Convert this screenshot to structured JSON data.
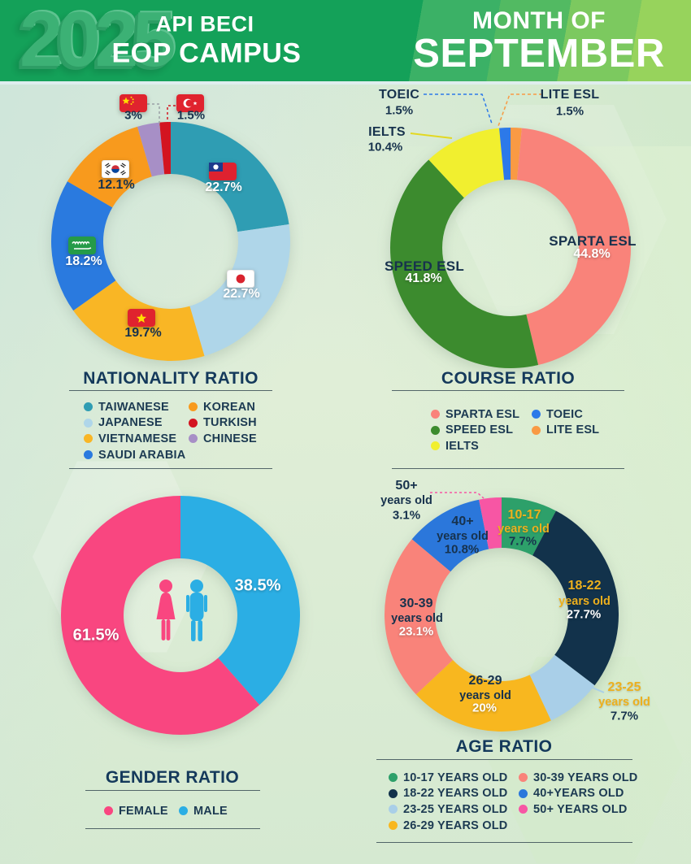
{
  "header": {
    "year": "2025",
    "campus_line1": "API BECI",
    "campus_line2": "EOP CAMPUS",
    "month_label": "MONTH OF",
    "month": "SEPTEMBER"
  },
  "colors": {
    "header_green": "#14A159",
    "title_navy": "#14395B",
    "legend_text": "#1C3A52",
    "gold_label": "#EDB01E"
  },
  "chart_data": [
    {
      "id": "nationality",
      "type": "pie",
      "title": "NATIONALITY RATIO",
      "legend_position": "below, two columns",
      "slices": [
        {
          "label": "TAIWANESE",
          "value": 22.7,
          "display": "22.7%",
          "color": "#2F9DB3",
          "flag": "taiwan"
        },
        {
          "label": "JAPANESE",
          "value": 22.7,
          "display": "22.7%",
          "color": "#AFD6E9",
          "flag": "japan"
        },
        {
          "label": "VIETNAMESE",
          "value": 19.7,
          "display": "19.7%",
          "color": "#F9B625",
          "flag": "vietnam"
        },
        {
          "label": "SAUDI ARABIA",
          "value": 18.2,
          "display": "18.2%",
          "color": "#2A7ADF",
          "flag": "saudi-arabia"
        },
        {
          "label": "KOREAN",
          "value": 12.1,
          "display": "12.1%",
          "color": "#F89A1D",
          "flag": "south-korea"
        },
        {
          "label": "CHINESE",
          "value": 3.0,
          "display": "3%",
          "color": "#A78FC6",
          "flag": "china"
        },
        {
          "label": "TURKISH",
          "value": 1.5,
          "display": "1.5%",
          "color": "#D31420",
          "flag": "turkey"
        }
      ]
    },
    {
      "id": "course",
      "type": "pie",
      "title": "COURSE RATIO",
      "legend_position": "below, two columns",
      "slices": [
        {
          "label": "LITE ESL",
          "value": 1.5,
          "display": "1.5%",
          "color": "#F99A44"
        },
        {
          "label": "SPARTA ESL",
          "value": 44.8,
          "display": "44.8%",
          "color": "#F9837A"
        },
        {
          "label": "SPEED ESL",
          "value": 41.8,
          "display": "41.8%",
          "color": "#3C8B2E"
        },
        {
          "label": "IELTS",
          "value": 10.4,
          "display": "10.4%",
          "color": "#F1EF2F"
        },
        {
          "label": "TOEIC",
          "value": 1.5,
          "display": "1.5%",
          "color": "#2C79E9"
        }
      ]
    },
    {
      "id": "gender",
      "type": "pie",
      "title": "GENDER RATIO",
      "legend_position": "below, one row",
      "slices": [
        {
          "label": "MALE",
          "value": 38.5,
          "display": "38.5%",
          "color": "#2BAEE4"
        },
        {
          "label": "FEMALE",
          "value": 61.5,
          "display": "61.5%",
          "color": "#F94680"
        }
      ]
    },
    {
      "id": "age",
      "type": "pie",
      "title": "AGE RATIO",
      "legend_position": "below, two columns",
      "slices": [
        {
          "label": "10-17  YEARS OLD",
          "name": "10-17",
          "sub": "years old",
          "value": 7.7,
          "display": "7.7%",
          "color": "#2DA06A"
        },
        {
          "label": "18-22 YEARS OLD",
          "name": "18-22",
          "sub": "years old",
          "value": 27.7,
          "display": "27.7%",
          "color": "#12324B"
        },
        {
          "label": "23-25 YEARS OLD",
          "name": "23-25",
          "sub": "years old",
          "value": 7.7,
          "display": "7.7%",
          "color": "#A9CFE8"
        },
        {
          "label": "26-29 YEARS OLD",
          "name": "26-29",
          "sub": "years old",
          "value": 20,
          "display": "20%",
          "color": "#F8B71F"
        },
        {
          "label": "30-39 YEARS OLD",
          "name": "30-39",
          "sub": "years old",
          "value": 23.1,
          "display": "23.1%",
          "color": "#F9837A"
        },
        {
          "label": "40+YEARS OLD",
          "name": "40+",
          "sub": "years old",
          "value": 10.8,
          "display": "10.8%",
          "color": "#2B77DB"
        },
        {
          "label": "50+ YEARS OLD",
          "name": "50+",
          "sub": "years old",
          "value": 3.1,
          "display": "3.1%",
          "color": "#F756A4"
        }
      ]
    }
  ]
}
